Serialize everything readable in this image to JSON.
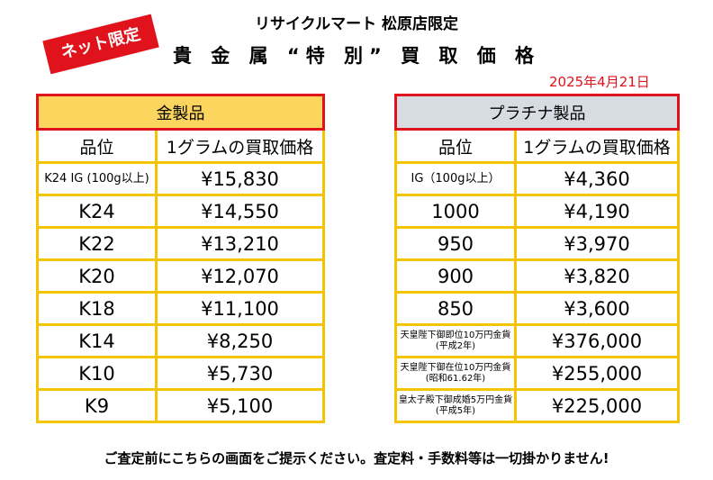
{
  "header": {
    "store": "リサイクルマート 松原店限定",
    "title": "貴 金 属 “特 別” 買 取 価 格",
    "badge": "ネット限定",
    "date": "2025年4月21日"
  },
  "gold_table": {
    "title": "金製品",
    "col_grade": "品位",
    "col_price": "1グラムの買取価格",
    "rows": [
      {
        "grade": "K24 IG (100g以上)",
        "price": "¥15,830"
      },
      {
        "grade": "K24",
        "price": "¥14,550"
      },
      {
        "grade": "K22",
        "price": "¥13,210"
      },
      {
        "grade": "K20",
        "price": "¥12,070"
      },
      {
        "grade": "K18",
        "price": "¥11,100"
      },
      {
        "grade": "K14",
        "price": "¥8,250"
      },
      {
        "grade": "K10",
        "price": "¥5,730"
      },
      {
        "grade": "K9",
        "price": "¥5,100"
      }
    ]
  },
  "platinum_table": {
    "title": "プラチナ製品",
    "col_grade": "品位",
    "col_price": "1グラムの買取価格",
    "rows": [
      {
        "grade": "IG（100g以上）",
        "price": "¥4,360"
      },
      {
        "grade": "1000",
        "price": "¥4,190"
      },
      {
        "grade": "950",
        "price": "¥3,970"
      },
      {
        "grade": "900",
        "price": "¥3,820"
      },
      {
        "grade": "850",
        "price": "¥3,600"
      },
      {
        "grade": "天皇陛下御即位10万円金貨(平成2年)",
        "price": "¥376,000"
      },
      {
        "grade": "天皇陛下御在位10万円金貨(昭和61.62年)",
        "price": "¥255,000"
      },
      {
        "grade": "皇太子殿下御成婚5万円金貨(平成5年)",
        "price": "¥225,000"
      }
    ]
  },
  "footer": {
    "note": "ご査定前にこちらの画面をご提示ください。査定料・手数料等は一切掛かりません!"
  },
  "colors": {
    "red": "#e0121b",
    "yellow_border": "#f5c400",
    "gold_header": "#fbd55e",
    "platinum_header": "#d7dbe2"
  }
}
